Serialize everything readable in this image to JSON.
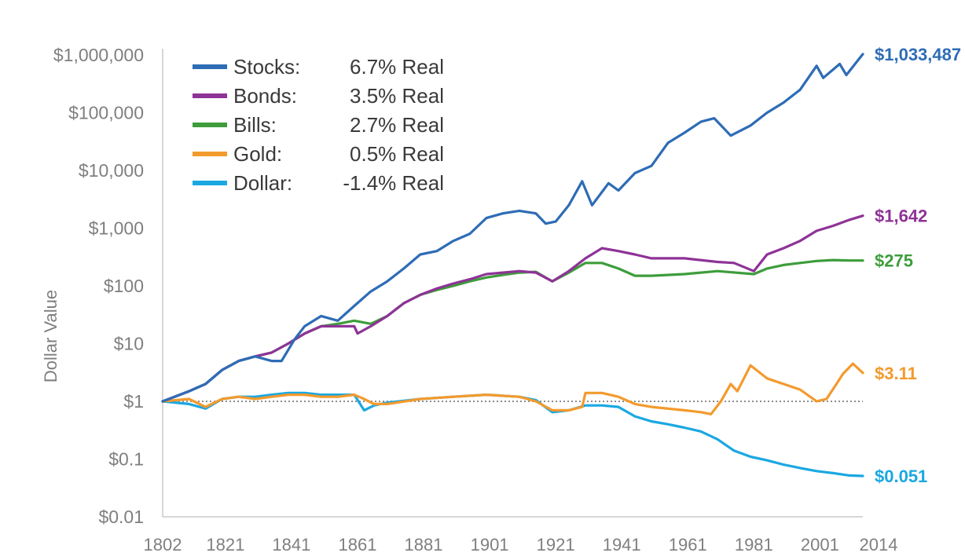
{
  "chart_data": {
    "type": "line",
    "ylabel": "Dollar Value",
    "xlabel": "",
    "title": "",
    "yscale": "log",
    "ylim": [
      0.01,
      1000000
    ],
    "xlim": [
      1802,
      2014
    ],
    "grid": false,
    "legend_position": "top-left",
    "reference_line": {
      "y": 1,
      "style": "dotted",
      "color": "#8c8c8c"
    },
    "y_ticks": [
      {
        "value": 0.01,
        "label": "$0.01"
      },
      {
        "value": 0.1,
        "label": "$0.1"
      },
      {
        "value": 1,
        "label": "$1"
      },
      {
        "value": 10,
        "label": "$10"
      },
      {
        "value": 100,
        "label": "$100"
      },
      {
        "value": 1000,
        "label": "$1,000"
      },
      {
        "value": 10000,
        "label": "$10,000"
      },
      {
        "value": 100000,
        "label": "$100,000"
      },
      {
        "value": 1000000,
        "label": "$1,000,000"
      }
    ],
    "x_ticks": [
      {
        "value": 1802,
        "label": "1802"
      },
      {
        "value": 1821,
        "label": "1821"
      },
      {
        "value": 1841,
        "label": "1841"
      },
      {
        "value": 1861,
        "label": "1861"
      },
      {
        "value": 1881,
        "label": "1881"
      },
      {
        "value": 1901,
        "label": "1901"
      },
      {
        "value": 1921,
        "label": "1921"
      },
      {
        "value": 1941,
        "label": "1941"
      },
      {
        "value": 1961,
        "label": "1961"
      },
      {
        "value": 1981,
        "label": "1981"
      },
      {
        "value": 2001,
        "label": "2001"
      },
      {
        "value": 2014,
        "label": "2014"
      }
    ],
    "series": [
      {
        "name": "Stocks:",
        "rate": "6.7% Real",
        "color": "#2e6cb5",
        "end_label": "$1,033,487",
        "x": [
          1802,
          1810,
          1815,
          1820,
          1825,
          1830,
          1835,
          1838,
          1842,
          1845,
          1850,
          1855,
          1860,
          1865,
          1870,
          1875,
          1880,
          1885,
          1890,
          1895,
          1900,
          1905,
          1910,
          1915,
          1918,
          1921,
          1925,
          1929,
          1932,
          1937,
          1940,
          1945,
          1950,
          1955,
          1960,
          1965,
          1969,
          1974,
          1980,
          1985,
          1990,
          1995,
          2000,
          2002,
          2007,
          2009,
          2014
        ],
        "y": [
          1,
          1.5,
          2,
          3.5,
          5,
          6,
          5,
          5,
          12,
          20,
          30,
          25,
          45,
          80,
          120,
          200,
          350,
          400,
          600,
          800,
          1500,
          1800,
          2000,
          1800,
          1200,
          1300,
          2500,
          6500,
          2500,
          6000,
          4500,
          9000,
          12000,
          30000,
          45000,
          70000,
          80000,
          40000,
          60000,
          100000,
          150000,
          250000,
          650000,
          400000,
          700000,
          450000,
          1033487
        ]
      },
      {
        "name": "Bonds:",
        "rate": "3.5% Real",
        "color": "#8e3397",
        "end_label": "$1,642",
        "x": [
          1802,
          1810,
          1815,
          1820,
          1825,
          1830,
          1835,
          1840,
          1845,
          1850,
          1855,
          1860,
          1861,
          1865,
          1870,
          1875,
          1880,
          1885,
          1890,
          1895,
          1900,
          1905,
          1910,
          1915,
          1920,
          1925,
          1930,
          1935,
          1940,
          1945,
          1950,
          1960,
          1970,
          1975,
          1981,
          1985,
          1990,
          1995,
          2000,
          2005,
          2010,
          2014
        ],
        "y": [
          1,
          1.5,
          2,
          3.5,
          5,
          6,
          7,
          10,
          15,
          20,
          20,
          20,
          15,
          20,
          30,
          50,
          70,
          90,
          110,
          130,
          160,
          170,
          180,
          170,
          120,
          180,
          300,
          450,
          400,
          350,
          300,
          300,
          260,
          250,
          180,
          350,
          450,
          600,
          900,
          1100,
          1400,
          1642
        ]
      },
      {
        "name": "Bills:",
        "rate": "2.7% Real",
        "color": "#3d9d3b",
        "end_label": "$275",
        "x": [
          1802,
          1810,
          1815,
          1820,
          1825,
          1830,
          1835,
          1840,
          1845,
          1850,
          1855,
          1860,
          1865,
          1870,
          1875,
          1880,
          1885,
          1890,
          1895,
          1900,
          1905,
          1910,
          1915,
          1920,
          1925,
          1930,
          1935,
          1940,
          1945,
          1950,
          1960,
          1970,
          1981,
          1985,
          1990,
          1995,
          2000,
          2005,
          2010,
          2014
        ],
        "y": [
          1,
          1.5,
          2,
          3.5,
          5,
          6,
          7,
          10,
          15,
          20,
          22,
          25,
          22,
          30,
          50,
          70,
          85,
          100,
          120,
          140,
          155,
          170,
          175,
          120,
          170,
          250,
          250,
          200,
          150,
          150,
          160,
          180,
          160,
          200,
          230,
          250,
          270,
          280,
          275,
          275
        ]
      },
      {
        "name": "Gold:",
        "rate": "0.5% Real",
        "color": "#f39a2d",
        "end_label": "$3.11",
        "x": [
          1802,
          1810,
          1815,
          1820,
          1825,
          1830,
          1835,
          1840,
          1845,
          1850,
          1855,
          1860,
          1863,
          1866,
          1870,
          1880,
          1890,
          1900,
          1910,
          1915,
          1920,
          1925,
          1929,
          1930,
          1935,
          1940,
          1945,
          1950,
          1960,
          1965,
          1968,
          1971,
          1974,
          1976,
          1980,
          1985,
          1990,
          1995,
          2000,
          2003,
          2006,
          2008,
          2011,
          2014
        ],
        "y": [
          1,
          1.1,
          0.8,
          1.1,
          1.2,
          1.1,
          1.2,
          1.3,
          1.3,
          1.2,
          1.2,
          1.3,
          1.1,
          0.9,
          0.9,
          1.1,
          1.2,
          1.3,
          1.2,
          1.0,
          0.7,
          0.7,
          0.8,
          1.4,
          1.4,
          1.2,
          0.9,
          0.8,
          0.7,
          0.65,
          0.6,
          1.0,
          2.0,
          1.5,
          4.2,
          2.5,
          2.0,
          1.6,
          1.0,
          1.1,
          2.0,
          3.0,
          4.5,
          3.11
        ]
      },
      {
        "name": "Dollar:",
        "rate": "-1.4% Real",
        "color": "#1aa8e2",
        "end_label": "$0.051",
        "x": [
          1802,
          1810,
          1815,
          1820,
          1825,
          1830,
          1835,
          1840,
          1845,
          1850,
          1855,
          1860,
          1863,
          1866,
          1870,
          1880,
          1890,
          1900,
          1910,
          1915,
          1920,
          1925,
          1930,
          1935,
          1940,
          1945,
          1950,
          1955,
          1960,
          1965,
          1970,
          1975,
          1980,
          1985,
          1990,
          1995,
          2000,
          2005,
          2010,
          2014
        ],
        "y": [
          1,
          0.9,
          0.75,
          1.1,
          1.2,
          1.2,
          1.3,
          1.4,
          1.4,
          1.3,
          1.3,
          1.3,
          0.7,
          0.85,
          0.95,
          1.1,
          1.2,
          1.3,
          1.2,
          1.05,
          0.65,
          0.7,
          0.85,
          0.85,
          0.8,
          0.55,
          0.45,
          0.4,
          0.35,
          0.3,
          0.22,
          0.14,
          0.11,
          0.095,
          0.08,
          0.07,
          0.062,
          0.057,
          0.052,
          0.051
        ]
      }
    ]
  }
}
